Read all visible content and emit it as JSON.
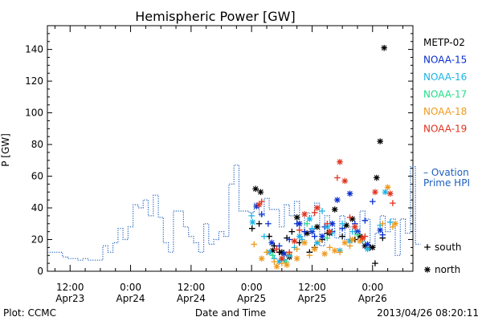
{
  "chart_data": {
    "type": "scatter",
    "title": "Hemispheric Power [GW]",
    "xlabel": "Date and Time",
    "ylabel": "P [GW]",
    "ylim": [
      0,
      155
    ],
    "yticks": [
      0,
      20,
      40,
      60,
      80,
      100,
      120,
      140
    ],
    "xlim_hours": [
      -16.5,
      56
    ],
    "xticks": [
      {
        "h": -12,
        "time": "12:00",
        "date": "Apr23"
      },
      {
        "h": 0,
        "time": "0:00",
        "date": "Apr24"
      },
      {
        "h": 12,
        "time": "12:00",
        "date": "Apr24"
      },
      {
        "h": 24,
        "time": "0:00",
        "date": "Apr25"
      },
      {
        "h": 36,
        "time": "12:00",
        "date": "Apr25"
      },
      {
        "h": 48,
        "time": "0:00",
        "date": "Apr26"
      }
    ],
    "footer_left": "Plot: CCMC",
    "footer_right": "2013/04/26 08:20:11",
    "marker_legend": [
      {
        "symbol": "+",
        "label": "south"
      },
      {
        "symbol": "*",
        "label": "north"
      }
    ],
    "ovation": {
      "label_line1": "– Ovation",
      "label_line2": "Prime HPI",
      "color": "#1f5fbf",
      "t0": -16.5,
      "dt": 1,
      "values": [
        12,
        12,
        12,
        9,
        8,
        8,
        7,
        8,
        7,
        7,
        7,
        16,
        12,
        18,
        27,
        20,
        28,
        42,
        40,
        45,
        35,
        48,
        34,
        18,
        12,
        38,
        38,
        28,
        22,
        18,
        12,
        30,
        17,
        20,
        25,
        22,
        55,
        67,
        38,
        38,
        37,
        43,
        35,
        46,
        39,
        39,
        28,
        42,
        35,
        44,
        22,
        37,
        35,
        43,
        16,
        35,
        30,
        21,
        35,
        20,
        28,
        23,
        38,
        33,
        16,
        24,
        35,
        25,
        33,
        10,
        33,
        24,
        66,
        17
      ]
    },
    "satellites": [
      {
        "name": "METP-02",
        "color": "#000000",
        "points": [
          [
            24.1,
            27,
            "+"
          ],
          [
            25.5,
            30,
            "+"
          ],
          [
            27.5,
            22,
            "+"
          ],
          [
            28.5,
            16,
            "+"
          ],
          [
            29.5,
            12,
            "+"
          ],
          [
            31,
            21,
            "+"
          ],
          [
            32,
            25,
            "+"
          ],
          [
            33.5,
            18,
            "+"
          ],
          [
            35.5,
            12,
            "+"
          ],
          [
            36.5,
            15,
            "+"
          ],
          [
            38,
            20,
            "+"
          ],
          [
            39,
            24,
            "+"
          ],
          [
            42,
            22,
            "+"
          ],
          [
            44.5,
            20,
            "+"
          ],
          [
            47.5,
            15,
            "+"
          ],
          [
            48.5,
            5,
            "+"
          ],
          [
            50,
            21,
            "+"
          ],
          [
            24.8,
            52,
            "*"
          ],
          [
            25.8,
            50,
            "*"
          ],
          [
            28.2,
            13,
            "*"
          ],
          [
            30,
            12,
            "*"
          ],
          [
            31.5,
            9,
            "*"
          ],
          [
            33,
            34,
            "*"
          ],
          [
            35,
            24,
            "*"
          ],
          [
            37,
            28,
            "*"
          ],
          [
            39.5,
            24,
            "*"
          ],
          [
            40.5,
            39,
            "*"
          ],
          [
            42.8,
            29,
            "*"
          ],
          [
            44,
            33,
            "*"
          ],
          [
            45.5,
            22,
            "*"
          ],
          [
            46.5,
            16,
            "*"
          ],
          [
            48,
            15,
            "*"
          ],
          [
            48.8,
            59,
            "*"
          ],
          [
            49.5,
            82,
            "*"
          ],
          [
            50.3,
            141,
            "*"
          ]
        ]
      },
      {
        "name": "NOAA-15",
        "color": "#0a2fcf",
        "points": [
          [
            26,
            36,
            "+"
          ],
          [
            27.3,
            30,
            "+"
          ],
          [
            29.5,
            16,
            "+"
          ],
          [
            31.5,
            20,
            "+"
          ],
          [
            33,
            30,
            "+"
          ],
          [
            34.5,
            25,
            "+"
          ],
          [
            36.5,
            22,
            "+"
          ],
          [
            38.5,
            28,
            "+"
          ],
          [
            40,
            25,
            "+"
          ],
          [
            42,
            27,
            "+"
          ],
          [
            44.5,
            30,
            "+"
          ],
          [
            46.5,
            32,
            "+"
          ],
          [
            48,
            44,
            "+"
          ],
          [
            50,
            23,
            "+"
          ],
          [
            25,
            41,
            "*"
          ],
          [
            28,
            18,
            "*"
          ],
          [
            30.5,
            11,
            "*"
          ],
          [
            33.5,
            30,
            "*"
          ],
          [
            36,
            25,
            "*"
          ],
          [
            38,
            22,
            "*"
          ],
          [
            40,
            30,
            "*"
          ],
          [
            41,
            45,
            "*"
          ],
          [
            43.5,
            49,
            "*"
          ],
          [
            45,
            25,
            "*"
          ],
          [
            47,
            17,
            "*"
          ],
          [
            49.5,
            26,
            "*"
          ]
        ]
      },
      {
        "name": "NOAA-16",
        "color": "#19b4e6",
        "points": [
          [
            24,
            35,
            "+"
          ],
          [
            26.5,
            22,
            "+"
          ],
          [
            28.5,
            8,
            "+"
          ],
          [
            30.5,
            7,
            "+"
          ],
          [
            32.5,
            15,
            "+"
          ],
          [
            34,
            20,
            "+"
          ],
          [
            36,
            27,
            "+"
          ],
          [
            38,
            38,
            "+"
          ],
          [
            40,
            24,
            "+"
          ],
          [
            42,
            30,
            "+"
          ],
          [
            44,
            25,
            "+"
          ],
          [
            46,
            19,
            "+"
          ],
          [
            49.5,
            29,
            "+"
          ],
          [
            51.5,
            31,
            "+"
          ],
          [
            24.2,
            31,
            "*"
          ],
          [
            27.5,
            12,
            "*"
          ],
          [
            29.5,
            6,
            "*"
          ],
          [
            31.5,
            10,
            "*"
          ],
          [
            33.5,
            22,
            "*"
          ],
          [
            35.5,
            33,
            "*"
          ],
          [
            37,
            18,
            "*"
          ],
          [
            39,
            28,
            "*"
          ],
          [
            41.5,
            13,
            "*"
          ],
          [
            43.5,
            19,
            "*"
          ],
          [
            47,
            14,
            "*"
          ],
          [
            50.5,
            50,
            "*"
          ]
        ]
      },
      {
        "name": "NOAA-17",
        "color": "#22dc88",
        "points": [
          [
            28.2,
            10,
            "+"
          ],
          [
            30.8,
            6,
            "+"
          ],
          [
            35,
            30,
            "+"
          ],
          [
            39,
            21,
            "+"
          ],
          [
            45,
            23,
            "+"
          ]
        ]
      },
      {
        "name": "NOAA-18",
        "color": "#f09a1e",
        "points": [
          [
            24.5,
            17,
            "+"
          ],
          [
            27,
            12,
            "+"
          ],
          [
            28.5,
            6,
            "+"
          ],
          [
            30,
            5,
            "+"
          ],
          [
            31.5,
            11,
            "+"
          ],
          [
            33,
            14,
            "+"
          ],
          [
            35.5,
            10,
            "+"
          ],
          [
            37.5,
            19,
            "+"
          ],
          [
            39.5,
            15,
            "+"
          ],
          [
            41.5,
            12,
            "+"
          ],
          [
            43.5,
            16,
            "+"
          ],
          [
            46,
            21,
            "+"
          ],
          [
            50,
            30,
            "+"
          ],
          [
            52,
            28,
            "+"
          ],
          [
            26,
            8,
            "*"
          ],
          [
            29,
            3,
            "*"
          ],
          [
            31,
            4,
            "*"
          ],
          [
            33,
            8,
            "*"
          ],
          [
            34.5,
            18,
            "*"
          ],
          [
            36.5,
            14,
            "*"
          ],
          [
            38.5,
            11,
            "*"
          ],
          [
            40.5,
            13,
            "*"
          ],
          [
            42.5,
            18,
            "*"
          ],
          [
            44,
            20,
            "*"
          ],
          [
            45.5,
            19,
            "*"
          ],
          [
            51,
            53,
            "*"
          ],
          [
            52.5,
            30,
            "*"
          ]
        ]
      },
      {
        "name": "NOAA-19",
        "color": "#e0321e",
        "points": [
          [
            26,
            44,
            "+"
          ],
          [
            29,
            14,
            "+"
          ],
          [
            31.5,
            12,
            "+"
          ],
          [
            33.5,
            26,
            "+"
          ],
          [
            36.5,
            37,
            "+"
          ],
          [
            39,
            30,
            "+"
          ],
          [
            41,
            59,
            "+"
          ],
          [
            43.5,
            34,
            "+"
          ],
          [
            46.5,
            22,
            "+"
          ],
          [
            52,
            43,
            "+"
          ],
          [
            25.5,
            42,
            "*"
          ],
          [
            30,
            8,
            "*"
          ],
          [
            32.5,
            19,
            "*"
          ],
          [
            34.5,
            36,
            "*"
          ],
          [
            37,
            40,
            "*"
          ],
          [
            39.5,
            25,
            "*"
          ],
          [
            41.5,
            69,
            "*"
          ],
          [
            42.5,
            57,
            "*"
          ],
          [
            44.5,
            28,
            "*"
          ],
          [
            46,
            21,
            "*"
          ],
          [
            48.5,
            50,
            "*"
          ],
          [
            51.5,
            49,
            "*"
          ]
        ]
      }
    ]
  }
}
